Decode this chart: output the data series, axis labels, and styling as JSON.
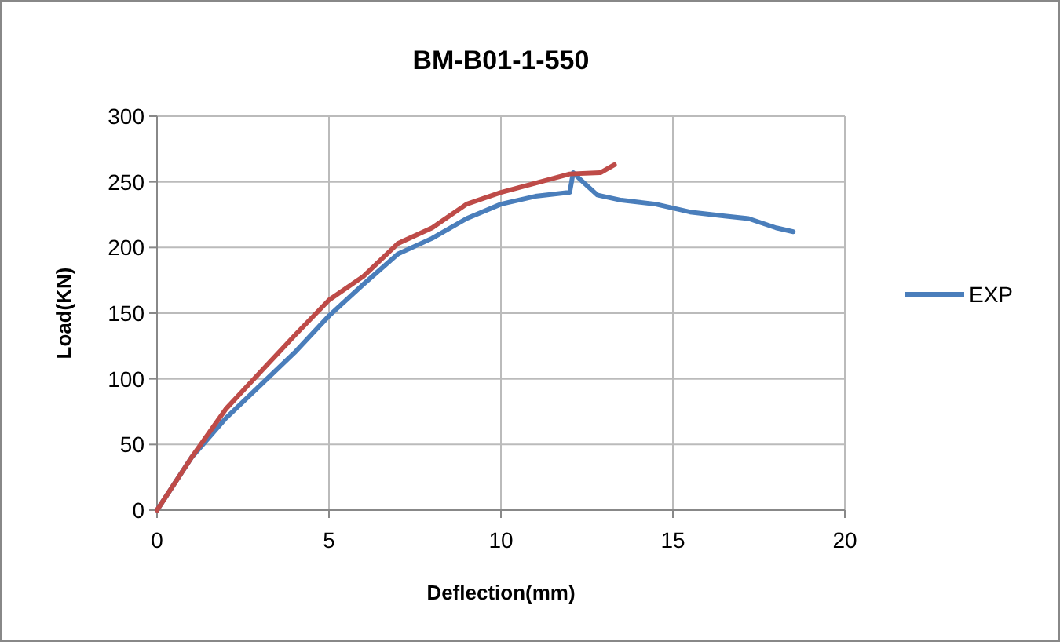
{
  "chart_data": {
    "type": "line",
    "title": "BM-B01-1-550",
    "xlabel": "Deflection(mm)",
    "ylabel": "Load(KN)",
    "xlim": [
      0,
      20
    ],
    "xticks": [
      0,
      5,
      10,
      15,
      20
    ],
    "ylim": [
      0,
      300
    ],
    "yticks": [
      0,
      50,
      100,
      150,
      200,
      250,
      300
    ],
    "grid": true,
    "legend": "right",
    "marker": "none",
    "line_style": "solid",
    "series": [
      {
        "name": "EXP",
        "color": "#4a7ebb",
        "x": [
          0,
          1,
          2,
          3,
          4,
          5,
          6,
          7,
          8,
          9,
          10,
          11,
          12,
          12.1,
          12.3,
          12.8,
          13.5,
          14.5,
          15.5,
          16.5,
          17.2,
          18,
          18.5
        ],
        "values": [
          0,
          40,
          70,
          95,
          120,
          148,
          172,
          195,
          207,
          222,
          233,
          239,
          242,
          257,
          252,
          240,
          236,
          233,
          227,
          224,
          222,
          215,
          212
        ]
      },
      {
        "color": "#be4b48",
        "x": [
          0,
          1,
          2,
          3,
          4,
          5,
          6,
          7,
          8,
          9,
          10,
          11,
          12,
          12.9,
          13.3
        ],
        "values": [
          0,
          40,
          77,
          105,
          133,
          160,
          178,
          203,
          215,
          233,
          242,
          249,
          256,
          257,
          263
        ]
      }
    ]
  }
}
